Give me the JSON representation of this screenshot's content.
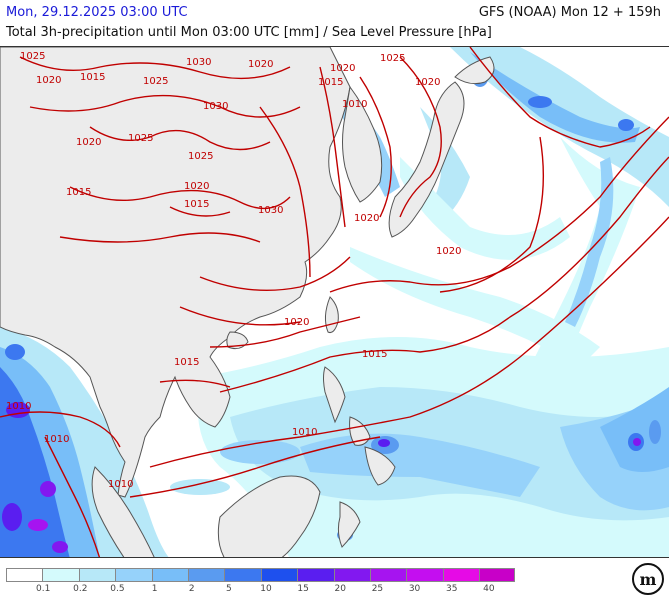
{
  "header": {
    "valid_time": "Mon, 29.12.2025 03:00 UTC",
    "model_run": "GFS (NOAA) Mon 12 + 159h",
    "title": "Total 3h-precipitation until Mon 03:00 UTC [mm] / Sea Level Pressure [hPa]"
  },
  "colors": {
    "ocean": "#ffffff",
    "land": "#ececec",
    "coast": "#555555",
    "isobar": "#c00000"
  },
  "isobar_labels": [
    "1025",
    "1020",
    "1030",
    "1015",
    "1020",
    "1025",
    "1015",
    "1020",
    "1010",
    "1020",
    "1030",
    "1025",
    "1020",
    "1025",
    "1020",
    "1015",
    "1015",
    "1030",
    "1020",
    "1020",
    "1020",
    "1015",
    "1015",
    "1010",
    "1010",
    "1010",
    "1010",
    "1025"
  ],
  "legend": {
    "ticks": [
      "0.1",
      "0.2",
      "0.5",
      "1",
      "2",
      "5",
      "10",
      "15",
      "20",
      "25",
      "30",
      "35",
      "40"
    ],
    "colors": [
      "#ffffff",
      "#d4fafc",
      "#b7e8f8",
      "#96d2fa",
      "#78bef8",
      "#5a9bf0",
      "#3c78f0",
      "#1e50ee",
      "#5a1ef0",
      "#8218f0",
      "#a614f0",
      "#c40ef0",
      "#e60ae6",
      "#c800c8"
    ]
  },
  "logo": {
    "text": "m"
  }
}
